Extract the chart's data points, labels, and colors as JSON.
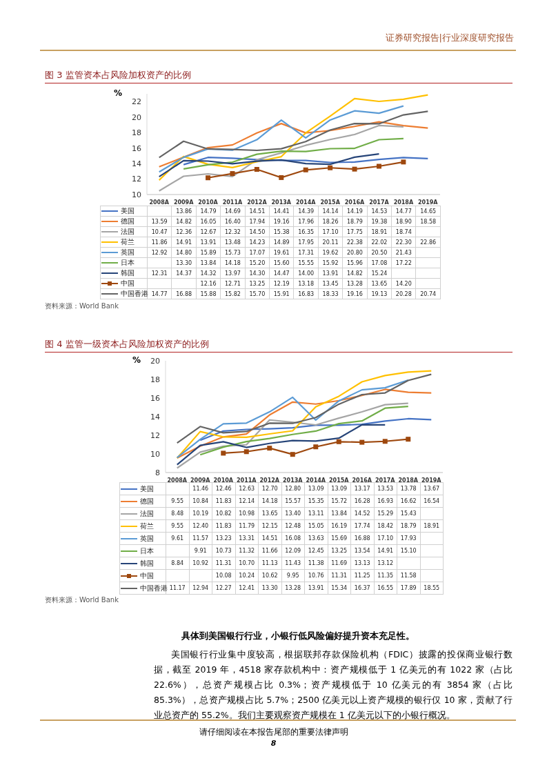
{
  "chart_data": [
    {
      "type": "line",
      "title": "图 3  监管资本占风险加权资产的比例",
      "ylabel": "%",
      "categories": [
        "2008A",
        "2009A",
        "2010A",
        "2011A",
        "2012A",
        "2013A",
        "2014A",
        "2015A",
        "2016A",
        "2017A",
        "2018A",
        "2019A"
      ],
      "ylim": [
        10,
        23
      ],
      "yticks": [
        10,
        12,
        14,
        16,
        18,
        20,
        22
      ],
      "legend": "bottom",
      "marker": "none",
      "annotations": [
        "证券研究报告|行业深度研究报告",
        "资料来源：World Bank"
      ],
      "series": [
        {
          "name": "美国",
          "color": "#4472c4",
          "values": [
            null,
            13.86,
            14.79,
            14.69,
            14.51,
            14.41,
            14.39,
            14.14,
            14.19,
            14.53,
            14.77,
            14.65
          ],
          "value_labels": [
            null,
            "13.86",
            "14.79",
            "14.69",
            "14.51",
            "14.41",
            "14.39",
            "14.14",
            "14.19",
            "14.53",
            "14.77",
            "14.65"
          ]
        },
        {
          "name": "德国",
          "color": "#ed7d31",
          "values": [
            13.59,
            14.82,
            16.05,
            16.4,
            17.94,
            19.16,
            17.96,
            18.26,
            18.79,
            19.38,
            18.9,
            18.58
          ],
          "value_labels": [
            "13.59",
            "14.82",
            "16.05",
            "16.40",
            "17.94",
            "19.16",
            "17.96",
            "18.26",
            "18.79",
            "19.38",
            "18.90",
            "18.58"
          ]
        },
        {
          "name": "法国",
          "color": "#a5a5a5",
          "values": [
            10.47,
            12.36,
            12.67,
            12.32,
            14.5,
            15.38,
            16.35,
            17.1,
            17.75,
            18.91,
            18.74,
            null
          ],
          "value_labels": [
            "10.47",
            "12.36",
            "12.67",
            "12.32",
            "14.50",
            "15.38",
            "16.35",
            "17.10",
            "17.75",
            "18.91",
            "18.74",
            null
          ]
        },
        {
          "name": "荷兰",
          "color": "#ffc000",
          "values": [
            11.86,
            14.91,
            13.91,
            13.48,
            14.23,
            14.89,
            17.95,
            20.11,
            22.38,
            22.02,
            22.3,
            22.86
          ],
          "value_labels": [
            "11.86",
            "14.91",
            "13.91",
            "13.48",
            "14.23",
            "14.89",
            "17.95",
            "20.11",
            "22.38",
            "22.02",
            "22.30",
            "22.86"
          ]
        },
        {
          "name": "英国",
          "color": "#5b9bd5",
          "values": [
            12.92,
            14.8,
            15.89,
            15.73,
            17.07,
            19.61,
            17.31,
            19.62,
            20.8,
            20.5,
            21.43,
            null
          ],
          "value_labels": [
            "12.92",
            "14.80",
            "15.89",
            "15.73",
            "17.07",
            "19.61",
            "17.31",
            "19.62",
            "20.80",
            "20.50",
            "21.43",
            null
          ]
        },
        {
          "name": "日本",
          "color": "#70ad47",
          "values": [
            null,
            13.3,
            13.84,
            14.18,
            15.2,
            15.6,
            15.55,
            15.92,
            15.96,
            17.08,
            17.22,
            null
          ],
          "value_labels": [
            null,
            "13.30",
            "13.84",
            "14.18",
            "15.20",
            "15.60",
            "15.55",
            "15.92",
            "15.96",
            "17.08",
            "17.22",
            null
          ]
        },
        {
          "name": "韩国",
          "color": "#264478",
          "values": [
            12.31,
            14.37,
            14.32,
            13.97,
            14.3,
            14.47,
            14.0,
            13.91,
            14.82,
            15.24,
            null,
            null
          ],
          "value_labels": [
            "12.31",
            "14.37",
            "14.32",
            "13.97",
            "14.30",
            "14.47",
            "14.00",
            "13.91",
            "14.82",
            "15.24",
            null,
            null
          ]
        },
        {
          "name": "中国",
          "color": "#9e480e",
          "marker": "square",
          "values": [
            null,
            null,
            12.16,
            12.71,
            13.25,
            12.19,
            13.18,
            13.45,
            13.28,
            13.65,
            14.2,
            null
          ],
          "value_labels": [
            null,
            null,
            "12.16",
            "12.71",
            "13.25",
            "12.19",
            "13.18",
            "13.45",
            "13.28",
            "13.65",
            "14.20",
            null
          ]
        },
        {
          "name": "中国香港",
          "color": "#636363",
          "values": [
            14.77,
            16.88,
            15.88,
            15.82,
            15.7,
            15.91,
            16.83,
            18.33,
            19.16,
            19.13,
            20.28,
            20.74
          ],
          "value_labels": [
            "14.77",
            "16.88",
            "15.88",
            "15.82",
            "15.70",
            "15.91",
            "16.83",
            "18.33",
            "19.16",
            "19.13",
            "20.28",
            "20.74"
          ]
        }
      ]
    },
    {
      "type": "line",
      "title": "图 4  监管一级资本占风险加权资产的比例",
      "ylabel": "%",
      "categories": [
        "2008A",
        "2009A",
        "2010A",
        "2011A",
        "2012A",
        "2013A",
        "2014A",
        "2015A",
        "2016A",
        "2017A",
        "2018A",
        "2019A"
      ],
      "ylim": [
        8,
        20
      ],
      "yticks": [
        8,
        10,
        12,
        14,
        16,
        18,
        20
      ],
      "legend": "bottom",
      "marker": "none",
      "annotations": [
        "资料来源：World Bank",
        "具体到美国银行行业，小银行低风险偏好提升资本充足性。",
        "美国银行行业集中度较高，根据联邦存款保险机构（FDIC）披露的投保商业银行数据，截至 2019 年，4518 家存款机构中：资产规模低于 1 亿美元的有 1022 家（占比 22.6%），总资产规模占比 0.3%；资产规模低于 10 亿美元的有 3854 家（占比 85.3%），总资产规模占比 5.7%；2500 亿美元以上资产规模的银行仅 10 家，贡献了行业总资产的 55.2%。我们主要观察资产规模在 1 亿美元以下的小银行概况。",
        "请仔细阅读在本报告尾部的重要法律声明",
        "8"
      ],
      "series": [
        {
          "name": "美国",
          "color": "#4472c4",
          "values": [
            null,
            11.46,
            12.46,
            12.63,
            12.7,
            12.8,
            13.09,
            13.09,
            13.17,
            13.53,
            13.78,
            13.67
          ],
          "value_labels": [
            null,
            "11.46",
            "12.46",
            "12.63",
            "12.70",
            "12.80",
            "13.09",
            "13.09",
            "13.17",
            "13.53",
            "13.78",
            "13.67"
          ]
        },
        {
          "name": "德国",
          "color": "#ed7d31",
          "values": [
            9.55,
            10.84,
            11.83,
            12.14,
            14.18,
            15.57,
            15.35,
            15.72,
            16.28,
            16.93,
            16.62,
            16.54
          ],
          "value_labels": [
            "9.55",
            "10.84",
            "11.83",
            "12.14",
            "14.18",
            "15.57",
            "15.35",
            "15.72",
            "16.28",
            "16.93",
            "16.62",
            "16.54"
          ]
        },
        {
          "name": "法国",
          "color": "#a5a5a5",
          "values": [
            8.48,
            10.19,
            10.82,
            10.98,
            13.65,
            13.4,
            13.11,
            13.84,
            14.52,
            15.29,
            15.43,
            null
          ],
          "value_labels": [
            "8.48",
            "10.19",
            "10.82",
            "10.98",
            "13.65",
            "13.40",
            "13.11",
            "13.84",
            "14.52",
            "15.29",
            "15.43",
            null
          ]
        },
        {
          "name": "荷兰",
          "color": "#ffc000",
          "values": [
            9.55,
            12.4,
            11.83,
            11.79,
            12.15,
            12.48,
            15.05,
            16.19,
            17.74,
            18.42,
            18.79,
            18.91
          ],
          "value_labels": [
            "9.55",
            "12.40",
            "11.83",
            "11.79",
            "12.15",
            "12.48",
            "15.05",
            "16.19",
            "17.74",
            "18.42",
            "18.79",
            "18.91"
          ]
        },
        {
          "name": "英国",
          "color": "#5b9bd5",
          "values": [
            9.61,
            11.57,
            13.23,
            13.31,
            14.51,
            16.08,
            13.63,
            15.69,
            16.88,
            17.1,
            17.93,
            null
          ],
          "value_labels": [
            "9.61",
            "11.57",
            "13.23",
            "13.31",
            "14.51",
            "16.08",
            "13.63",
            "15.69",
            "16.88",
            "17.10",
            "17.93",
            null
          ]
        },
        {
          "name": "日本",
          "color": "#70ad47",
          "values": [
            null,
            9.91,
            10.73,
            11.32,
            11.66,
            12.09,
            12.45,
            13.25,
            13.54,
            14.91,
            15.1,
            null
          ],
          "value_labels": [
            null,
            "9.91",
            "10.73",
            "11.32",
            "11.66",
            "12.09",
            "12.45",
            "13.25",
            "13.54",
            "14.91",
            "15.10",
            null
          ]
        },
        {
          "name": "韩国",
          "color": "#264478",
          "values": [
            8.84,
            10.92,
            11.31,
            10.7,
            11.13,
            11.43,
            11.38,
            11.69,
            13.13,
            13.12,
            null,
            null
          ],
          "value_labels": [
            "8.84",
            "10.92",
            "11.31",
            "10.70",
            "11.13",
            "11.43",
            "11.38",
            "11.69",
            "13.13",
            "13.12",
            null,
            null
          ]
        },
        {
          "name": "中国",
          "color": "#9e480e",
          "marker": "square",
          "values": [
            null,
            null,
            10.08,
            10.24,
            10.62,
            9.95,
            10.76,
            11.31,
            11.25,
            11.35,
            11.58,
            null
          ],
          "value_labels": [
            null,
            null,
            "10.08",
            "10.24",
            "10.62",
            "9.95",
            "10.76",
            "11.31",
            "11.25",
            "11.35",
            "11.58",
            null
          ]
        },
        {
          "name": "中国香港",
          "color": "#636363",
          "values": [
            11.17,
            12.94,
            12.27,
            12.41,
            13.3,
            13.28,
            13.91,
            15.34,
            16.37,
            16.55,
            17.89,
            18.55
          ],
          "value_labels": [
            "11.17",
            "12.94",
            "12.27",
            "12.41",
            "13.30",
            "13.28",
            "13.91",
            "15.34",
            "16.37",
            "16.55",
            "17.89",
            "18.55"
          ]
        }
      ]
    }
  ]
}
